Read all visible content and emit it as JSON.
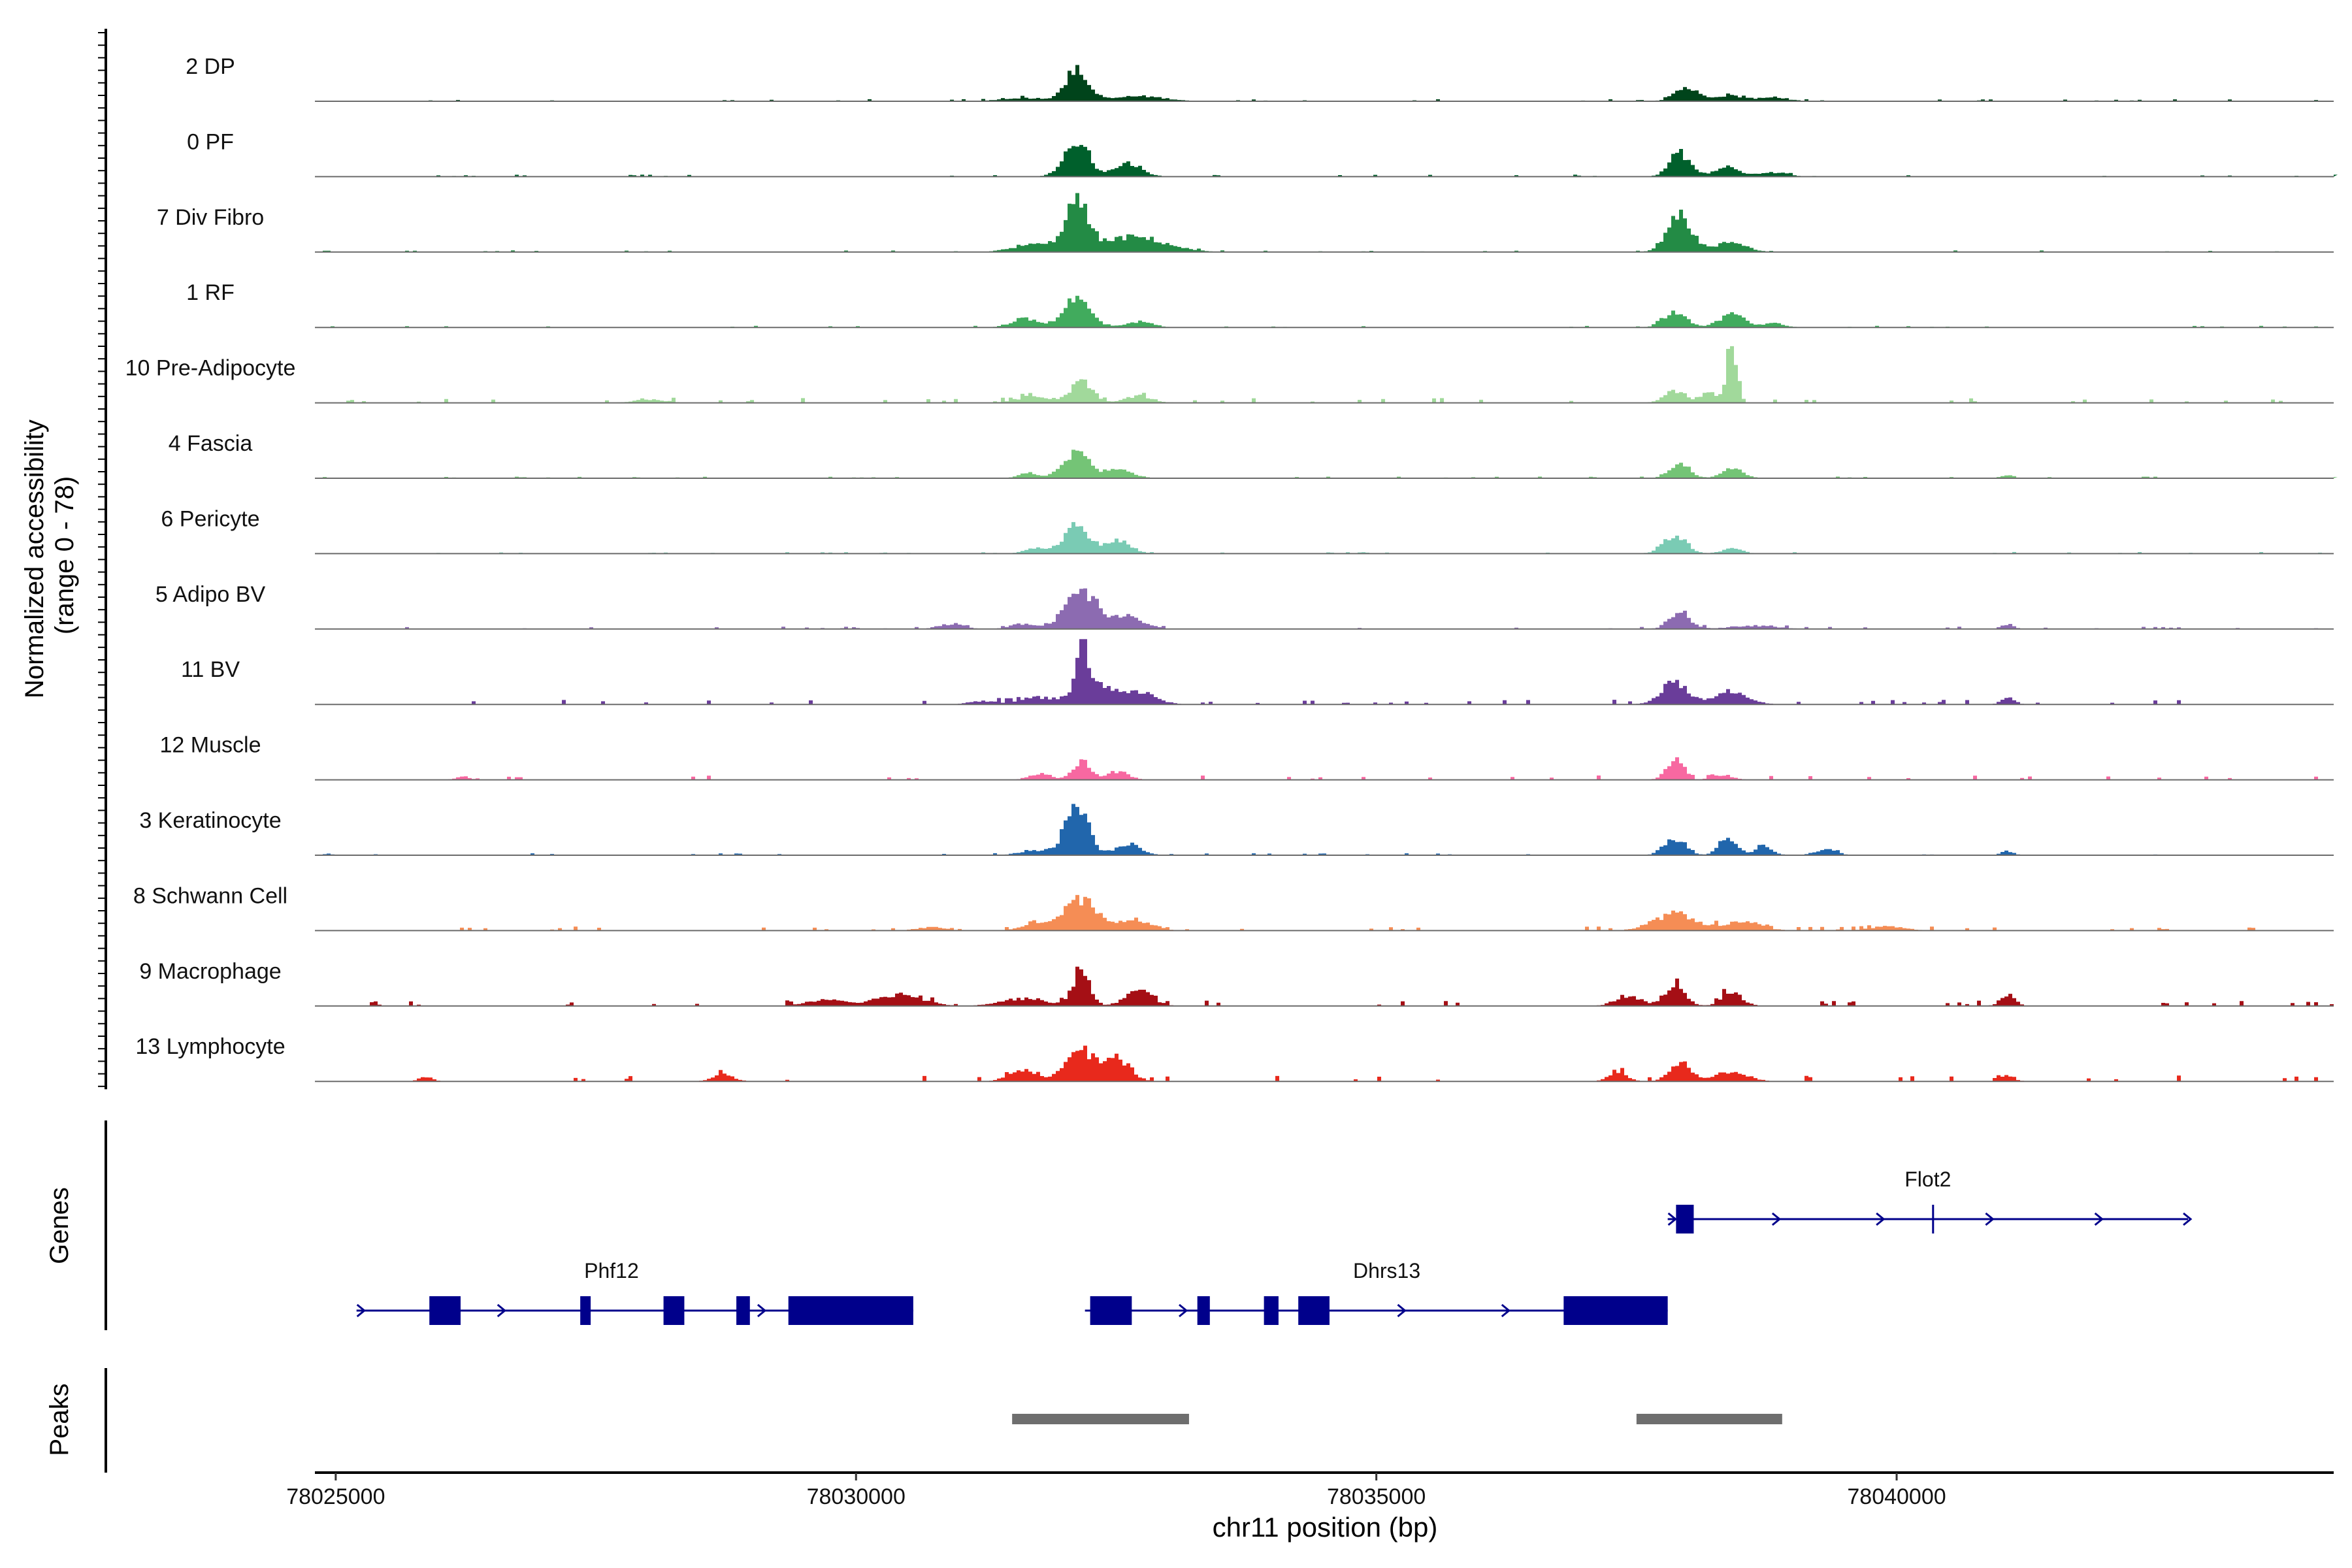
{
  "chart_data": {
    "type": "area",
    "chromosome": "chr11",
    "xlabel": "chr11 position (bp)",
    "xlim": [
      78024800,
      78044200
    ],
    "x_ticks": [
      78025000,
      78030000,
      78035000,
      78040000
    ],
    "ylabel_line1": "Normalized accessibility",
    "ylabel_line2": "(range 0 - 78)",
    "ylim": [
      0,
      78
    ],
    "coverage_tracks": [
      {
        "name": "2 DP",
        "color": "#00441b",
        "noise": 0.6,
        "peaks": [
          [
            78032100,
            110,
            36
          ],
          [
            78032700,
            250,
            6
          ],
          [
            78031600,
            220,
            4
          ],
          [
            78037950,
            110,
            16
          ],
          [
            78038350,
            160,
            7
          ],
          [
            78038800,
            150,
            4
          ]
        ]
      },
      {
        "name": "0 PF",
        "color": "#00602c",
        "noise": 0.6,
        "peaks": [
          [
            78032100,
            120,
            40
          ],
          [
            78032600,
            130,
            16
          ],
          [
            78037900,
            100,
            28
          ],
          [
            78038350,
            120,
            11
          ],
          [
            78038800,
            140,
            5
          ]
        ]
      },
      {
        "name": "7 Div Fibro",
        "color": "#238b45",
        "noise": 0.5,
        "peaks": [
          [
            78032100,
            110,
            56
          ],
          [
            78032650,
            300,
            18
          ],
          [
            78031700,
            200,
            9
          ],
          [
            78037900,
            120,
            42
          ],
          [
            78038400,
            140,
            12
          ]
        ]
      },
      {
        "name": "1 RF",
        "color": "#41ab5d",
        "noise": 0.5,
        "peaks": [
          [
            78032100,
            130,
            34
          ],
          [
            78031600,
            130,
            10
          ],
          [
            78032700,
            130,
            7
          ],
          [
            78037850,
            110,
            18
          ],
          [
            78038400,
            120,
            16
          ],
          [
            78038800,
            100,
            5
          ]
        ]
      },
      {
        "name": "10 Pre-Adipocyte",
        "color": "#a1d99b",
        "noise": 1.4,
        "peaks": [
          [
            78032150,
            100,
            28
          ],
          [
            78031700,
            160,
            8
          ],
          [
            78032700,
            130,
            8
          ],
          [
            78038400,
            50,
            70
          ],
          [
            78037850,
            100,
            14
          ],
          [
            78038200,
            100,
            11
          ],
          [
            78028000,
            150,
            4
          ]
        ]
      },
      {
        "name": "4 Fascia",
        "color": "#74c476",
        "noise": 0.5,
        "peaks": [
          [
            78032100,
            120,
            32
          ],
          [
            78032500,
            140,
            10
          ],
          [
            78031650,
            100,
            6
          ],
          [
            78037900,
            100,
            16
          ],
          [
            78038400,
            100,
            12
          ],
          [
            78041050,
            60,
            4
          ]
        ]
      },
      {
        "name": "6 Pericyte",
        "color": "#7acbb4",
        "noise": 0.5,
        "peaks": [
          [
            78032100,
            120,
            34
          ],
          [
            78032500,
            120,
            16
          ],
          [
            78031700,
            100,
            6
          ],
          [
            78037850,
            110,
            22
          ],
          [
            78038400,
            100,
            6
          ]
        ]
      },
      {
        "name": "5 Adipo BV",
        "color": "#8c6bb1",
        "noise": 0.7,
        "peaks": [
          [
            78032150,
            160,
            42
          ],
          [
            78032600,
            150,
            14
          ],
          [
            78031600,
            130,
            6
          ],
          [
            78030900,
            120,
            6
          ],
          [
            78037900,
            100,
            20
          ],
          [
            78038600,
            220,
            4
          ],
          [
            78041050,
            60,
            6
          ]
        ]
      },
      {
        "name": "11 BV",
        "color": "#6a3d9a",
        "noise": 1.4,
        "peaks": [
          [
            78032150,
            45,
            76
          ],
          [
            78032250,
            180,
            26
          ],
          [
            78032700,
            160,
            14
          ],
          [
            78031700,
            160,
            8
          ],
          [
            78031200,
            130,
            4
          ],
          [
            78037850,
            130,
            26
          ],
          [
            78038400,
            160,
            14
          ],
          [
            78041050,
            60,
            9
          ]
        ]
      },
      {
        "name": "12 Muscle",
        "color": "#f768a1",
        "noise": 1.3,
        "peaks": [
          [
            78032150,
            90,
            22
          ],
          [
            78032500,
            100,
            10
          ],
          [
            78031750,
            100,
            8
          ],
          [
            78037850,
            80,
            24
          ],
          [
            78038300,
            100,
            6
          ],
          [
            78026200,
            60,
            4
          ]
        ]
      },
      {
        "name": "3 Keratinocyte",
        "color": "#2166ac",
        "noise": 0.6,
        "peaks": [
          [
            78032100,
            110,
            60
          ],
          [
            78032600,
            120,
            14
          ],
          [
            78031700,
            140,
            6
          ],
          [
            78037850,
            100,
            18
          ],
          [
            78038350,
            80,
            22
          ],
          [
            78038700,
            80,
            12
          ],
          [
            78039300,
            100,
            7
          ],
          [
            78041050,
            60,
            5
          ]
        ]
      },
      {
        "name": "8 Schwann Cell",
        "color": "#f58d55",
        "noise": 1.2,
        "peaks": [
          [
            78032150,
            170,
            36
          ],
          [
            78032700,
            140,
            12
          ],
          [
            78031700,
            140,
            8
          ],
          [
            78037850,
            200,
            20
          ],
          [
            78038500,
            180,
            10
          ],
          [
            78039900,
            160,
            5
          ],
          [
            78030700,
            140,
            4
          ]
        ]
      },
      {
        "name": "9 Macrophage",
        "color": "#a50f15",
        "noise": 1.6,
        "peaks": [
          [
            78032150,
            80,
            44
          ],
          [
            78032700,
            130,
            18
          ],
          [
            78031600,
            220,
            9
          ],
          [
            78030400,
            220,
            14
          ],
          [
            78029700,
            180,
            8
          ],
          [
            78037850,
            100,
            24
          ],
          [
            78038400,
            100,
            16
          ],
          [
            78037400,
            120,
            12
          ],
          [
            78041050,
            70,
            14
          ]
        ]
      },
      {
        "name": "13 Lymphocyte",
        "color": "#e8291c",
        "noise": 1.8,
        "peaks": [
          [
            78032150,
            140,
            36
          ],
          [
            78032500,
            120,
            26
          ],
          [
            78031600,
            140,
            14
          ],
          [
            78037900,
            100,
            22
          ],
          [
            78037300,
            90,
            12
          ],
          [
            78038400,
            150,
            12
          ],
          [
            78028700,
            100,
            8
          ],
          [
            78025850,
            60,
            6
          ],
          [
            78041050,
            60,
            8
          ]
        ]
      }
    ],
    "genes_track_label": "Genes",
    "genes": [
      {
        "name": "Phf12",
        "strand": "+",
        "row": 2,
        "start": 78025200,
        "end": 78030550,
        "label_x": 78027650,
        "exons": [
          [
            78025900,
            78026200
          ],
          [
            78027350,
            78027450
          ],
          [
            78028150,
            78028350
          ],
          [
            78028850,
            78028980
          ],
          [
            78029350,
            78030550
          ]
        ],
        "arrows": [
          78025250,
          78026600,
          78029100
        ]
      },
      {
        "name": "Dhrs13",
        "strand": "+",
        "row": 2,
        "start": 78032200,
        "end": 78037800,
        "label_x": 78035100,
        "exons": [
          [
            78032250,
            78032650
          ],
          [
            78033280,
            78033400
          ],
          [
            78033920,
            78034060
          ],
          [
            78034250,
            78034550
          ],
          [
            78036800,
            78037800
          ]
        ],
        "arrows": [
          78033150,
          78034000,
          78035250,
          78036250
        ]
      },
      {
        "name": "Flot2",
        "strand": "+",
        "row": 1,
        "start": 78037800,
        "end": 78042800,
        "label_x": 78040300,
        "exons": [
          [
            78037880,
            78038050
          ]
        ],
        "ticks": [
          78040350
        ],
        "arrows": [
          78037850,
          78038850,
          78039850,
          78040900,
          78041950,
          78042800
        ]
      }
    ],
    "peaks_track_label": "Peaks",
    "peak_regions": [
      [
        78031500,
        78033200
      ],
      [
        78037500,
        78038900
      ]
    ]
  }
}
